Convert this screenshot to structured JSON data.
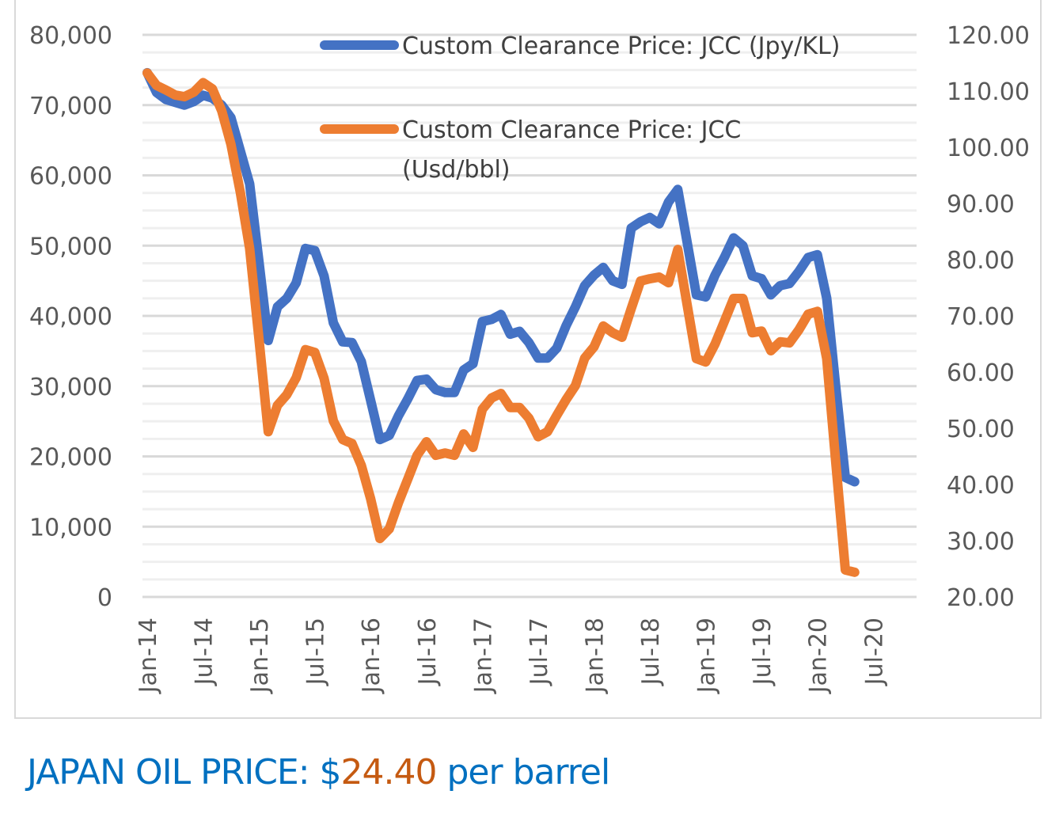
{
  "chart_data": {
    "type": "line",
    "title": "",
    "x_start": "Jan-14",
    "x_tick_labels": [
      "Jan-14",
      "Jul-14",
      "Jan-15",
      "Jul-15",
      "Jan-16",
      "Jul-16",
      "Jan-17",
      "Jul-17",
      "Jan-18",
      "Jul-18",
      "Jan-19",
      "Jul-19",
      "Jan-20",
      "Jul-20"
    ],
    "y_left": {
      "range": [
        0,
        80000
      ],
      "tick_labels": [
        "0",
        "10,000",
        "20,000",
        "30,000",
        "40,000",
        "50,000",
        "60,000",
        "70,000",
        "80,000"
      ]
    },
    "y_right": {
      "range": [
        20,
        120
      ],
      "tick_labels": [
        "20.00",
        "30.00",
        "40.00",
        "50.00",
        "60.00",
        "70.00",
        "80.00",
        "90.00",
        "100.00",
        "110.00",
        "120.00"
      ]
    },
    "grid": true,
    "legend_placement": "top-center",
    "series": [
      {
        "name": "Custom Clearance Price: JCC (Jpy/KL)",
        "axis": "left",
        "color": "#4472C4",
        "values": [
          74600,
          71800,
          70800,
          70400,
          70000,
          70500,
          71400,
          71000,
          70000,
          68200,
          63500,
          58800,
          47800,
          36500,
          41300,
          42500,
          44700,
          49600,
          49300,
          45700,
          39000,
          36300,
          36200,
          33500,
          28000,
          22400,
          23000,
          25800,
          28200,
          30800,
          31000,
          29500,
          29100,
          29100,
          32300,
          33200,
          39200,
          39500,
          40200,
          37400,
          37800,
          36200,
          34000,
          34000,
          35400,
          38600,
          41300,
          44300,
          45800,
          46900,
          45000,
          44500,
          52500,
          53400,
          54000,
          53100,
          56200,
          58000,
          50500,
          43000,
          42700,
          45800,
          48300,
          51100,
          50000,
          45700,
          45300,
          43000,
          44300,
          44600,
          46300,
          48300,
          48700,
          42500,
          29600,
          17000,
          16400
        ]
      },
      {
        "name": "Custom Clearance Price: JCC (Usd/bbl)",
        "name_lines": [
          "Custom Clearance Price: JCC",
          "(Usd/bbl)"
        ],
        "axis": "right",
        "color": "#ED7D31",
        "values": [
          113.2,
          111,
          110.2,
          109.3,
          109,
          109.8,
          111.5,
          110.4,
          106.5,
          100.5,
          92,
          82,
          66,
          49.4,
          54.1,
          56,
          59,
          64,
          63.5,
          58.9,
          51.3,
          48,
          47.3,
          43.4,
          37.5,
          30.4,
          32.1,
          36.8,
          41,
          45.2,
          47.6,
          45.2,
          45.6,
          45.2,
          49,
          46.6,
          53.4,
          55.4,
          56.2,
          53.7,
          53.7,
          51.8,
          48.5,
          49.4,
          52.3,
          55.1,
          57.6,
          62.5,
          64.5,
          68.2,
          67,
          66.2,
          71.3,
          76.2,
          76.6,
          76.9,
          75.9,
          81.8,
          72,
          62.4,
          61.8,
          65,
          69,
          73.1,
          73.1,
          67,
          67.3,
          63.8,
          65.4,
          65.2,
          67.5,
          70.3,
          70.8,
          62.4,
          43.5,
          24.8,
          24.4
        ]
      }
    ]
  },
  "caption": {
    "prefix": "JAPAN OIL PRICE: $",
    "value": "24.40",
    "suffix": " per barrel",
    "prefix_color": "#0070C0",
    "value_color": "#C55A11"
  }
}
